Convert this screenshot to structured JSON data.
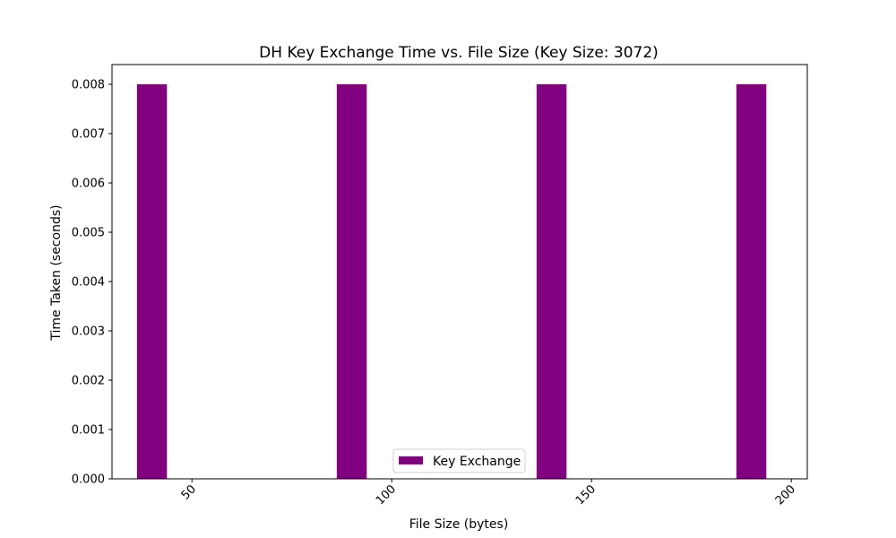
{
  "chart_data": {
    "type": "bar",
    "title": "DH Key Exchange Time vs. File Size (Key Size: 3072)",
    "xlabel": "File Size (bytes)",
    "ylabel": "Time Taken (seconds)",
    "x": [
      40,
      90,
      140,
      190
    ],
    "xlim": [
      30,
      204
    ],
    "xticks": [
      50,
      100,
      150,
      200
    ],
    "ylim": [
      0,
      0.0084
    ],
    "yticks": [
      "0.000",
      "0.001",
      "0.002",
      "0.003",
      "0.004",
      "0.005",
      "0.006",
      "0.007",
      "0.008"
    ],
    "bar_width": 7.5,
    "series": [
      {
        "name": "Key Exchange",
        "color": "#800080",
        "values": [
          0.008,
          0.008,
          0.008,
          0.008
        ]
      }
    ],
    "legend": {
      "placement": "bottom-center"
    },
    "grid": false
  }
}
